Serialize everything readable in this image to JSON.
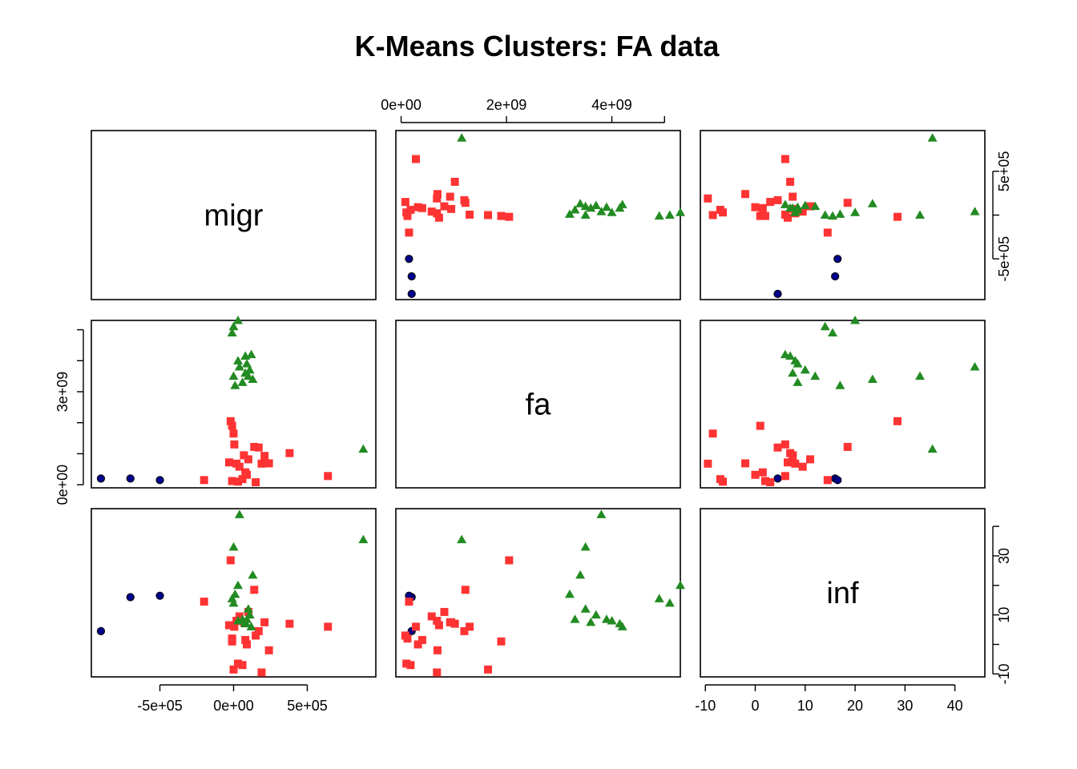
{
  "chart_data": {
    "type": "scatter",
    "subtype": "pairs-matrix",
    "title": "K-Means Clusters: FA data",
    "variables": [
      "migr",
      "fa",
      "inf"
    ],
    "axes": {
      "migr": {
        "range": [
          -965000,
          965000
        ],
        "ticks": [
          -500000,
          0,
          500000
        ],
        "tick_labels": [
          "-5e+05",
          "0e+00",
          "5e+05"
        ]
      },
      "fa": {
        "range": [
          -100000000,
          5300000000
        ],
        "ticks": [
          0,
          3000000000
        ],
        "tick_labels": [
          "0e+00",
          "3e+09"
        ],
        "top_ticks": [
          0,
          2000000000,
          4000000000,
          5000000000
        ],
        "top_tick_labels": [
          "0e+00",
          "2e+09",
          "4e+09",
          ""
        ]
      },
      "inf": {
        "range": [
          -11,
          46
        ],
        "ticks": [
          -10,
          0,
          10,
          20,
          30,
          40
        ],
        "tick_labels": [
          "-10",
          "0",
          "10",
          "20",
          "30",
          "40"
        ],
        "right_ticks": [
          -10,
          0,
          10,
          20,
          30,
          40
        ],
        "right_tick_labels": [
          "-10",
          "",
          "10",
          "",
          "30",
          ""
        ]
      }
    },
    "clusters": [
      {
        "color": "#00008B",
        "shape": "circle"
      },
      {
        "color": "#FF3333",
        "shape": "square"
      },
      {
        "color": "#228B22",
        "shape": "triangle"
      }
    ],
    "points": [
      {
        "migr": -900000,
        "fa": 200000000,
        "inf": 4.5,
        "cluster": 0
      },
      {
        "migr": -700000,
        "fa": 200000000,
        "inf": 16,
        "cluster": 0
      },
      {
        "migr": -500000,
        "fa": 150000000,
        "inf": 16.5,
        "cluster": 0
      },
      {
        "migr": -200000,
        "fa": 150000000,
        "inf": 14.5,
        "cluster": 1
      },
      {
        "migr": -20000,
        "fa": 2050000000,
        "inf": 28.5,
        "cluster": 1
      },
      {
        "migr": -10000,
        "fa": 1900000000,
        "inf": 1,
        "cluster": 1
      },
      {
        "migr": 0,
        "fa": 1650000000,
        "inf": -8.5,
        "cluster": 1
      },
      {
        "migr": 5000,
        "fa": 1300000000,
        "inf": 6,
        "cluster": 1
      },
      {
        "migr": -30000,
        "fa": 720000000,
        "inf": 6.5,
        "cluster": 1
      },
      {
        "migr": 20000,
        "fa": 680000000,
        "inf": 8,
        "cluster": 1
      },
      {
        "migr": 40000,
        "fa": 580000000,
        "inf": 9.5,
        "cluster": 1
      },
      {
        "migr": -10000,
        "fa": 120000000,
        "inf": 2,
        "cluster": 1
      },
      {
        "migr": 30000,
        "fa": 100000000,
        "inf": -6.5,
        "cluster": 1
      },
      {
        "migr": 60000,
        "fa": 180000000,
        "inf": -7,
        "cluster": 1
      },
      {
        "migr": 90000,
        "fa": 320000000,
        "inf": 0,
        "cluster": 1
      },
      {
        "migr": 70000,
        "fa": 950000000,
        "inf": 7.5,
        "cluster": 1
      },
      {
        "migr": 100000,
        "fa": 820000000,
        "inf": 11,
        "cluster": 1
      },
      {
        "migr": 140000,
        "fa": 1220000000,
        "inf": 18.5,
        "cluster": 1
      },
      {
        "migr": 170000,
        "fa": 1200000000,
        "inf": 4.5,
        "cluster": 1
      },
      {
        "migr": 190000,
        "fa": 680000000,
        "inf": -9.5,
        "cluster": 1
      },
      {
        "migr": 240000,
        "fa": 690000000,
        "inf": -2,
        "cluster": 1
      },
      {
        "migr": 210000,
        "fa": 930000000,
        "inf": 7.5,
        "cluster": 1
      },
      {
        "migr": 380000,
        "fa": 1020000000,
        "inf": 7,
        "cluster": 1
      },
      {
        "migr": 640000,
        "fa": 280000000,
        "inf": 6,
        "cluster": 1
      },
      {
        "migr": 150000,
        "fa": 80000000,
        "inf": 3,
        "cluster": 1
      },
      {
        "migr": 80000,
        "fa": 400000000,
        "inf": 1.5,
        "cluster": 1
      },
      {
        "migr": 880000,
        "fa": 1150000000,
        "inf": 35.5,
        "cluster": 2
      },
      {
        "migr": 30000,
        "fa": 5300000000,
        "inf": 20,
        "cluster": 2
      },
      {
        "migr": 0,
        "fa": 5100000000,
        "inf": 14,
        "cluster": 2
      },
      {
        "migr": -10000,
        "fa": 4900000000,
        "inf": 15.5,
        "cluster": 2
      },
      {
        "migr": 80000,
        "fa": 4150000000,
        "inf": 7,
        "cluster": 2
      },
      {
        "migr": 120000,
        "fa": 4200000000,
        "inf": 6,
        "cluster": 2
      },
      {
        "migr": 30000,
        "fa": 4000000000,
        "inf": 8,
        "cluster": 2
      },
      {
        "migr": 90000,
        "fa": 3900000000,
        "inf": 8.5,
        "cluster": 2
      },
      {
        "migr": 110000,
        "fa": 3700000000,
        "inf": 10,
        "cluster": 2
      },
      {
        "migr": 80000,
        "fa": 3600000000,
        "inf": 7.5,
        "cluster": 2
      },
      {
        "migr": 100000,
        "fa": 3500000000,
        "inf": 12,
        "cluster": 2
      },
      {
        "migr": 0,
        "fa": 3500000000,
        "inf": 33,
        "cluster": 2
      },
      {
        "migr": 10000,
        "fa": 3200000000,
        "inf": 17,
        "cluster": 2
      },
      {
        "migr": 130000,
        "fa": 3400000000,
        "inf": 23.5,
        "cluster": 2
      },
      {
        "migr": 40000,
        "fa": 3800000000,
        "inf": 44,
        "cluster": 2
      },
      {
        "migr": 60000,
        "fa": 3300000000,
        "inf": 8.5,
        "cluster": 2
      }
    ]
  }
}
